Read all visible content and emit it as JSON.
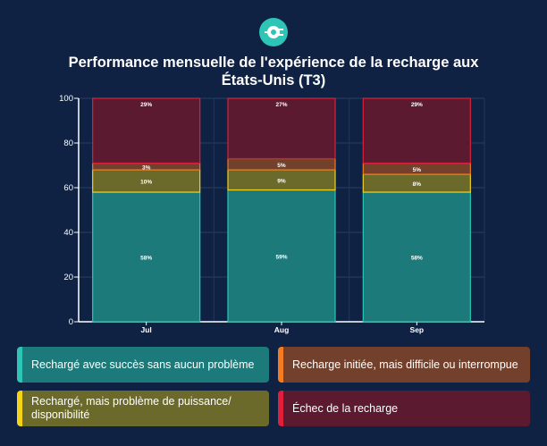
{
  "chart_data": {
    "type": "bar",
    "stacked": true,
    "title": "Performance mensuelle de l'expérience de la recharge aux États-Unis (T3)",
    "categories": [
      "Jul",
      "Aug",
      "Sep"
    ],
    "ylim": [
      0,
      100
    ],
    "yticks": [
      0,
      20,
      40,
      60,
      80,
      100
    ],
    "grid": true,
    "legend_placement": "bottom",
    "series": [
      {
        "name": "Rechargé avec succès sans aucun problème",
        "values": [
          58,
          59,
          58
        ],
        "labels": [
          "58%",
          "59%",
          "58%"
        ],
        "fill": "#1d7a7a",
        "stroke": "#27c7b5",
        "accent": "#2ec4b6"
      },
      {
        "name": "Rechargé, mais problème de puissance/ disponibilité",
        "values": [
          10,
          9,
          8
        ],
        "labels": [
          "10%",
          "9%",
          "8%"
        ],
        "fill": "#6b6a2a",
        "stroke": "#f2d21b",
        "accent": "#f5d316"
      },
      {
        "name": "Recharge initiée, mais difficile ou interrompue",
        "values": [
          3,
          5,
          5
        ],
        "labels": [
          "3%",
          "5%",
          "5%"
        ],
        "fill": "#73402b",
        "stroke": "#f07a21",
        "accent": "#f47b20"
      },
      {
        "name": "Échec de la recharge",
        "values": [
          29,
          27,
          29
        ],
        "labels": [
          "29%",
          "27%",
          "29%"
        ],
        "fill": "#5c1a30",
        "stroke": "#d8203a",
        "accent": "#e0203a"
      }
    ]
  },
  "icon": "plug-icon"
}
